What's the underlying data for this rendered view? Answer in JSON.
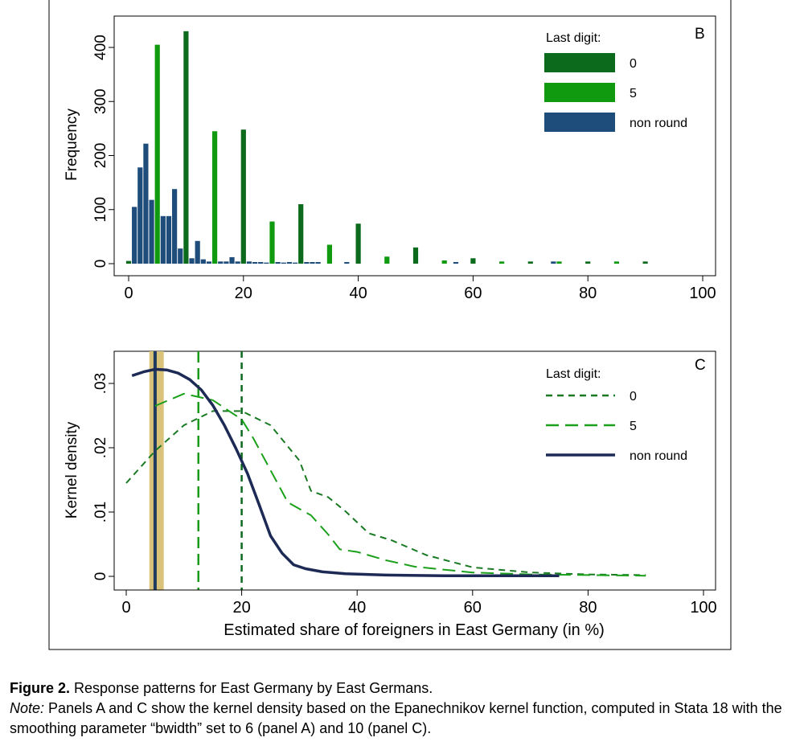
{
  "chart_data": [
    {
      "panel": "B",
      "type": "bar",
      "ylabel": "Frequency",
      "xlabel": "",
      "xlim": [
        0,
        100
      ],
      "ylim": [
        0,
        430
      ],
      "xticks": [
        "0",
        "20",
        "40",
        "60",
        "80",
        "100"
      ],
      "yticks": [
        "0",
        "100",
        "200",
        "300",
        "400"
      ],
      "legend_title": "Last digit:",
      "legend_position": "top-right",
      "series": [
        {
          "name": "0",
          "color": "#0b6a1b",
          "points": [
            [
              0,
              5
            ],
            [
              10,
              430
            ],
            [
              20,
              248
            ],
            [
              30,
              110
            ],
            [
              40,
              74
            ],
            [
              50,
              30
            ],
            [
              60,
              10
            ],
            [
              70,
              4
            ],
            [
              80,
              4
            ],
            [
              90,
              4
            ]
          ]
        },
        {
          "name": "5",
          "color": "#109a10",
          "points": [
            [
              5,
              405
            ],
            [
              15,
              245
            ],
            [
              25,
              78
            ],
            [
              35,
              35
            ],
            [
              45,
              13
            ],
            [
              55,
              6
            ],
            [
              65,
              4
            ],
            [
              75,
              4
            ],
            [
              85,
              4
            ]
          ]
        },
        {
          "name": "non round",
          "color": "#1e4d7b",
          "points": [
            [
              1,
              105
            ],
            [
              2,
              178
            ],
            [
              3,
              222
            ],
            [
              4,
              118
            ],
            [
              6,
              88
            ],
            [
              7,
              88
            ],
            [
              8,
              138
            ],
            [
              9,
              28
            ],
            [
              11,
              10
            ],
            [
              12,
              42
            ],
            [
              13,
              8
            ],
            [
              14,
              4
            ],
            [
              16,
              4
            ],
            [
              17,
              4
            ],
            [
              18,
              12
            ],
            [
              19,
              4
            ],
            [
              21,
              4
            ],
            [
              22,
              3
            ],
            [
              23,
              3
            ],
            [
              24,
              2
            ],
            [
              26,
              3
            ],
            [
              27,
              2
            ],
            [
              28,
              3
            ],
            [
              29,
              2
            ],
            [
              31,
              3
            ],
            [
              32,
              3
            ],
            [
              33,
              3
            ],
            [
              38,
              3
            ],
            [
              57,
              3
            ],
            [
              74,
              4
            ]
          ]
        }
      ]
    },
    {
      "panel": "C",
      "type": "line",
      "ylabel": "Kernel density",
      "xlabel": "Estimated share of foreigners in East Germany (in %)",
      "xlim": [
        0,
        100
      ],
      "ylim": [
        0,
        0.034
      ],
      "xticks": [
        "0",
        "20",
        "40",
        "60",
        "80",
        "100"
      ],
      "yticks": [
        "0",
        ".01",
        ".02",
        ".03"
      ],
      "legend_title": "Last digit:",
      "legend_position": "top-right",
      "vlines": [
        {
          "x": 5,
          "series": "non round",
          "color": "#1e3a5f"
        },
        {
          "x": 12.5,
          "series": "5",
          "color": "#1a9a1a"
        },
        {
          "x": 20,
          "series": "0",
          "color": "#0b6a1b"
        }
      ],
      "highlight_band": {
        "x": [
          4,
          6.5
        ],
        "color": "#d9c27a"
      },
      "series": [
        {
          "name": "0",
          "color": "#1a7a24",
          "dash": "short",
          "x": [
            0,
            5,
            10,
            15,
            20,
            25,
            30,
            32,
            35,
            38,
            42,
            46,
            52,
            60,
            70,
            80,
            90
          ],
          "y": [
            0.0145,
            0.0195,
            0.0235,
            0.0257,
            0.0257,
            0.0235,
            0.018,
            0.0133,
            0.0123,
            0.0101,
            0.0067,
            0.0056,
            0.0033,
            0.0014,
            0.0006,
            0.0003,
            0.0002
          ]
        },
        {
          "name": "5",
          "color": "#1aa01a",
          "dash": "long",
          "x": [
            5,
            10,
            15,
            20,
            22,
            25,
            28,
            32,
            35,
            37,
            40,
            45,
            50,
            60,
            70,
            80,
            90
          ],
          "y": [
            0.0265,
            0.0284,
            0.0274,
            0.0244,
            0.0215,
            0.0165,
            0.0115,
            0.0095,
            0.0065,
            0.0042,
            0.0038,
            0.0025,
            0.0015,
            0.0006,
            0.0003,
            0.0002,
            0.0001
          ]
        },
        {
          "name": "non round",
          "color": "#1c2a55",
          "dash": "solid",
          "x": [
            1,
            3,
            5,
            7,
            9,
            11,
            13,
            15,
            17,
            19,
            21,
            23,
            25,
            27,
            29,
            31,
            34,
            38,
            45,
            55,
            65,
            75
          ],
          "y": [
            0.0312,
            0.0318,
            0.0322,
            0.0321,
            0.0316,
            0.0306,
            0.029,
            0.0266,
            0.0235,
            0.0199,
            0.016,
            0.0112,
            0.0063,
            0.0036,
            0.0018,
            0.0012,
            0.0007,
            0.0004,
            0.0002,
            0.0001,
            0.0001,
            0.0001
          ]
        }
      ]
    }
  ],
  "caption": {
    "figure_label": "Figure 2.",
    "figure_title": "Response patterns for East Germany by East Germans.",
    "note_label": "Note:",
    "note_text": "Panels A and C show the kernel density based on the Epanechnikov kernel function, computed in Stata 18 with the smoothing parameter “bwidth” set to 6 (panel A) and 10 (panel C)."
  }
}
